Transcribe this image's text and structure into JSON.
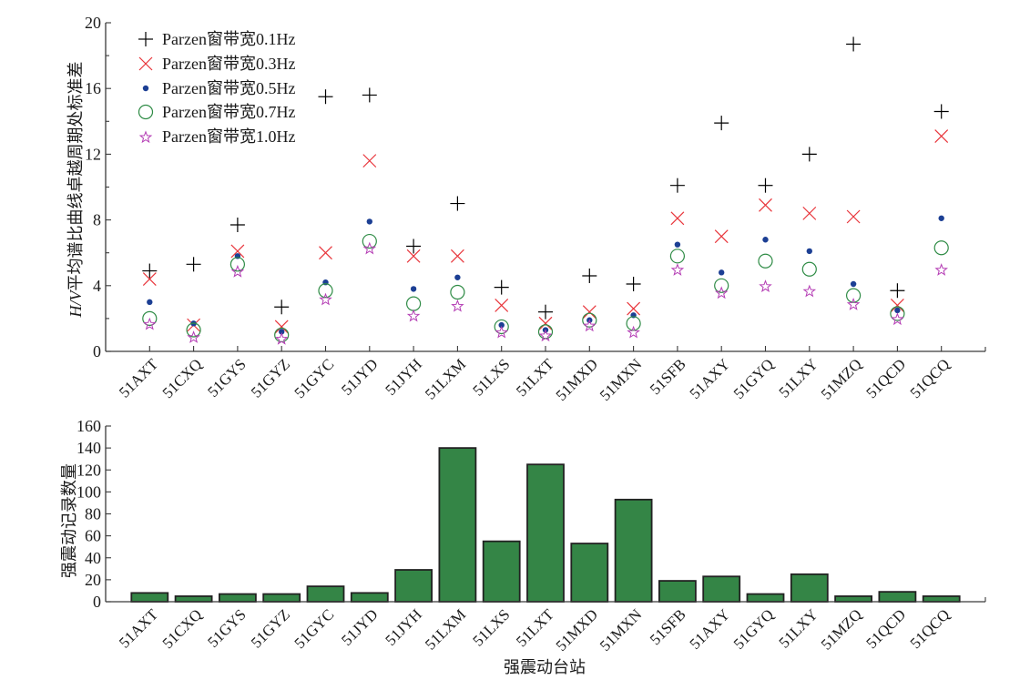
{
  "chart_data": [
    {
      "type": "scatter",
      "title": "",
      "xlabel": "",
      "ylabel": "H/V平均谱比曲线卓越周期处标准差",
      "categories": [
        "51AXT",
        "51CXQ",
        "51GYS",
        "51GYZ",
        "51GYC",
        "51JYD",
        "51JYH",
        "51LXM",
        "51LXS",
        "51LXT",
        "51MXD",
        "51MXN",
        "51SFB",
        "51AXY",
        "51GYQ",
        "51LXY",
        "51MZQ",
        "51QCD",
        "51QCQ"
      ],
      "ylim": [
        0,
        20
      ],
      "yticks": [
        0,
        4,
        8,
        12,
        16,
        20
      ],
      "yticks_minor": [
        2,
        6,
        10,
        14,
        18
      ],
      "grid": false,
      "legend_position": "top-left",
      "series": [
        {
          "name": "Parzen窗带宽0.1Hz",
          "marker": "plus",
          "color": "#000000",
          "values": [
            4.9,
            5.3,
            7.7,
            2.7,
            15.5,
            15.6,
            6.4,
            9.0,
            3.9,
            2.4,
            4.6,
            4.1,
            10.1,
            13.9,
            10.1,
            12.0,
            18.7,
            3.7,
            14.6
          ]
        },
        {
          "name": "Parzen窗带宽0.3Hz",
          "marker": "x",
          "color": "#e8343a",
          "values": [
            4.4,
            1.6,
            6.1,
            1.5,
            6.0,
            11.6,
            5.8,
            5.8,
            2.8,
            1.7,
            2.4,
            2.6,
            8.1,
            7.0,
            8.9,
            8.4,
            8.2,
            2.8,
            13.1
          ]
        },
        {
          "name": "Parzen窗带宽0.5Hz",
          "marker": "dot",
          "color": "#1c3f94",
          "values": [
            3.0,
            1.7,
            5.8,
            1.2,
            4.2,
            7.9,
            3.8,
            4.5,
            1.6,
            1.3,
            1.9,
            2.2,
            6.5,
            4.8,
            6.8,
            6.1,
            4.1,
            2.5,
            8.1
          ]
        },
        {
          "name": "Parzen窗带宽0.7Hz",
          "marker": "circle",
          "color": "#2e8b45",
          "values": [
            2.0,
            1.3,
            5.3,
            1.0,
            3.7,
            6.7,
            2.9,
            3.6,
            1.5,
            1.2,
            1.9,
            1.7,
            5.8,
            4.0,
            5.5,
            5.0,
            3.4,
            2.3,
            6.3
          ]
        },
        {
          "name": "Parzen窗带宽1.0Hz",
          "marker": "star",
          "color": "#b43cb4",
          "values": [
            1.7,
            0.9,
            4.9,
            0.8,
            3.2,
            6.3,
            2.2,
            2.8,
            1.2,
            1.0,
            1.6,
            1.2,
            5.0,
            3.6,
            4.0,
            3.7,
            2.9,
            2.0,
            5.0
          ]
        }
      ]
    },
    {
      "type": "bar",
      "title": "",
      "xlabel": "强震动台站",
      "ylabel": "强震动记录数量",
      "categories": [
        "51AXT",
        "51CXQ",
        "51GYS",
        "51GYZ",
        "51GYC",
        "51JYD",
        "51JYH",
        "51LXM",
        "51LXS",
        "51LXT",
        "51MXD",
        "51MXN",
        "51SFB",
        "51AXY",
        "51GYQ",
        "51LXY",
        "51MZQ",
        "51QCD",
        "51QCQ"
      ],
      "values": [
        8,
        5,
        7,
        7,
        14,
        8,
        29,
        140,
        55,
        125,
        53,
        93,
        19,
        23,
        7,
        25,
        5,
        9,
        5
      ],
      "ylim": [
        0,
        160
      ],
      "yticks": [
        0,
        20,
        40,
        60,
        80,
        100,
        120,
        140,
        160
      ],
      "grid": false,
      "bar_color": "#348546",
      "edge_color": "#222222"
    }
  ]
}
